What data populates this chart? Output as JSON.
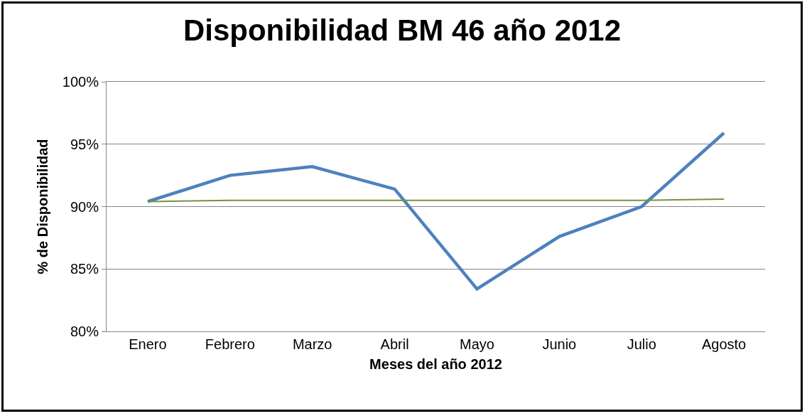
{
  "chart_data": {
    "type": "line",
    "title": "Disponibilidad BM 46 año 2012",
    "xlabel": "Meses del año 2012",
    "ylabel": "% de Disponibilidad",
    "categories": [
      "Enero",
      "Febrero",
      "Marzo",
      "Abril",
      "Mayo",
      "Junio",
      "Julio",
      "Agosto"
    ],
    "series": [
      {
        "color": "#4f81bd",
        "values": [
          90.4,
          92.5,
          93.2,
          91.4,
          83.4,
          87.6,
          90.0,
          95.9
        ]
      },
      {
        "color": "#77933c",
        "values": [
          90.4,
          90.5,
          90.5,
          90.5,
          90.5,
          90.5,
          90.5,
          90.6
        ]
      }
    ],
    "ylim": [
      80,
      100
    ],
    "yticks": [
      {
        "value": 80,
        "label": "80%"
      },
      {
        "value": 85,
        "label": "85%"
      },
      {
        "value": 90,
        "label": "90%"
      },
      {
        "value": 95,
        "label": "95%"
      },
      {
        "value": 100,
        "label": "100%"
      }
    ],
    "grid": "y",
    "marker": "none",
    "line_style": "solid"
  }
}
